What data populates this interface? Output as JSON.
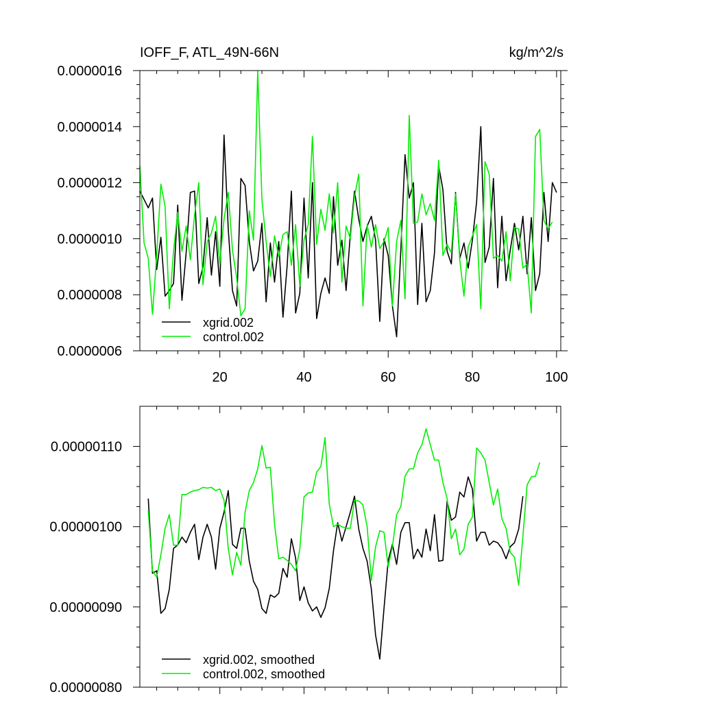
{
  "chart_data": [
    {
      "type": "line",
      "title": "IOFF_F, ATL_49N-66N",
      "units": "kg/m^2/s",
      "xlabel": "",
      "ylabel": "",
      "xlim": [
        1,
        101
      ],
      "ylim": [
        6e-07,
        1.6e-06
      ],
      "x_ticks": [
        20,
        40,
        60,
        80,
        100
      ],
      "x_tick_labels": [
        "20",
        "40",
        "60",
        "80",
        "100"
      ],
      "y_ticks": [
        6e-07,
        8e-07,
        1e-06,
        1.2e-06,
        1.4e-06,
        1.6e-06
      ],
      "y_tick_labels": [
        "0.0000006",
        "0.0000008",
        "0.0000010",
        "0.0000012",
        "0.0000014",
        "0.0000016"
      ],
      "legend_position": "bottom-left",
      "grid": false,
      "x_start": 1,
      "x_step": 1,
      "series": [
        {
          "name": "xgrid.002",
          "color": "#000000",
          "values": [
            1.17e-06,
            1.14e-06,
            1.11e-06,
            1.145e-06,
            8.9e-07,
            1.005e-06,
            7.95e-07,
            8.15e-07,
            8.4e-07,
            1.12e-06,
            7.8e-07,
            9.5e-07,
            1.165e-06,
            1.17e-06,
            8.4e-07,
            9e-07,
            1.075e-06,
            8.7e-07,
            1.025e-06,
            8.3e-07,
            1.37e-06,
            1.035e-06,
            8.15e-07,
            7.6e-07,
            1.215e-06,
            1.19e-06,
            9.9e-07,
            8.85e-07,
            9.2e-07,
            1.055e-06,
            7.75e-07,
            9.85e-07,
            8.45e-07,
            9.9e-07,
            7.2e-07,
            9.05e-07,
            1.17e-06,
            7.35e-07,
            8.05e-07,
            1.145e-06,
            8.6e-07,
            1.2e-06,
            7.15e-07,
            8.05e-07,
            8.6e-07,
            8.05e-07,
            1.15e-06,
            9.05e-07,
            9.95e-07,
            8.15e-07,
            1.015e-06,
            1.17e-06,
            1.07e-06,
            9.9e-07,
            1.045e-06,
            1.08e-06,
            9.95e-07,
            7.05e-07,
            1e-06,
            9.4e-07,
            7.6e-07,
            6.5e-07,
            9.6e-07,
            1.3e-06,
            1.145e-06,
            1.2e-06,
            7.65e-07,
            1.055e-06,
            7.75e-07,
            8.15e-07,
            9.5e-07,
            1.26e-06,
            1.175e-06,
            9.55e-07,
            9.1e-07,
            1.165e-06,
            9.3e-07,
            9.85e-07,
            8.95e-07,
            9.95e-07,
            1.13e-06,
            1.4e-06,
            9.15e-07,
            9.7e-07,
            1.215e-06,
            8.25e-07,
            1.08e-06,
            8.5e-07,
            9.6e-07,
            1.055e-06,
            9.6e-07,
            1.08e-06,
            8.75e-07,
            1.075e-06,
            8.15e-07,
            8.75e-07,
            1.165e-06,
            9.9e-07,
            1.2e-06,
            1.165e-06
          ]
        },
        {
          "name": "control.002",
          "color": "#00ee00",
          "values": [
            1.26e-06,
            9.85e-07,
            9.3e-07,
            7.3e-07,
            9.4e-07,
            1.195e-06,
            1.115e-06,
            7.5e-07,
            9.55e-07,
            1.095e-06,
            9.55e-07,
            1.045e-06,
            9.25e-07,
            1.085e-06,
            1.2e-06,
            8.35e-07,
            9.9e-07,
            1.02e-06,
            1.08e-06,
            9.1e-07,
            1.07e-06,
            1.165e-06,
            9.6e-07,
            8.6e-07,
            7.25e-07,
            7.5e-07,
            1.1e-06,
            9.95e-07,
            1.6e-06,
            1.14e-06,
            9.9e-07,
            8.65e-07,
            1.01e-06,
            9.35e-07,
            1.015e-06,
            1.025e-06,
            9.05e-07,
            1.05e-06,
            8.3e-07,
            9.95e-07,
            1.05e-06,
            1.365e-06,
            9.8e-07,
            1.105e-06,
            1.03e-06,
            1.16e-06,
            1.02e-06,
            1.2e-06,
            8.45e-07,
            1.045e-06,
            1e-06,
            1.15e-06,
            1.23e-06,
            7.6e-07,
            1.05e-06,
            9.7e-07,
            1.05e-06,
            9.65e-07,
            9.9e-07,
            1.04e-06,
            7.6e-07,
            9.9e-07,
            1.065e-06,
            7.85e-07,
            1.44e-06,
            1.055e-06,
            1.06e-06,
            1.16e-06,
            1.085e-06,
            1.125e-06,
            1.065e-06,
            1.28e-06,
            9.4e-07,
            9.8e-07,
            9.5e-07,
            1.16e-06,
            9.25e-07,
            7.95e-07,
            9.7e-07,
            1.01e-06,
            1.05e-06,
            7.5e-07,
            1.275e-06,
            1.23e-06,
            9.3e-07,
            9.4e-07,
            9.2e-07,
            1.025e-06,
            8.5e-07,
            1.04e-06,
            1.035e-06,
            8.95e-07,
            9.1e-07,
            7.35e-07,
            1.365e-06,
            1.39e-06,
            1.065e-06,
            1.035e-06,
            1.06e-06
          ]
        }
      ]
    },
    {
      "type": "line",
      "title": "",
      "xlabel": "",
      "ylabel": "",
      "xlim": [
        1,
        101
      ],
      "ylim": [
        8e-07,
        1.15e-06
      ],
      "x_ticks": [
        20,
        40,
        60,
        80,
        100
      ],
      "y_ticks": [
        8e-07,
        9e-07,
        1e-06,
        1.1e-06
      ],
      "y_tick_labels": [
        "0.00000080",
        "0.00000090",
        "0.00000100",
        "0.00000110"
      ],
      "legend_position": "bottom-left",
      "grid": false,
      "x_start": 3,
      "x_step": 1,
      "series": [
        {
          "name": "xgrid.002, smoothed",
          "color": "#000000",
          "values": [
            1.035e-06,
            9.42e-07,
            9.45e-07,
            8.92e-07,
            8.98e-07,
            9.22e-07,
            9.73e-07,
            9.77e-07,
            9.87e-07,
            9.8e-07,
            9.93e-07,
            1.003e-06,
            9.59e-07,
            9.87e-07,
            1.003e-06,
            9.87e-07,
            9.47e-07,
            9.98e-07,
            1.018e-06,
            1.045e-06,
            9.78e-07,
            9.73e-07,
            9.98e-07,
            9.98e-07,
            9.57e-07,
            9.32e-07,
            9.22e-07,
            8.98e-07,
            8.92e-07,
            9.15e-07,
            9.12e-07,
            9.17e-07,
            9.48e-07,
            9.37e-07,
            9.85e-07,
            9.61e-07,
            9.08e-07,
            9.25e-07,
            9.05e-07,
            8.95e-07,
            9e-07,
            8.87e-07,
            8.99e-07,
            9.23e-07,
            9.7e-07,
            1.005e-06,
            9.82e-07,
            1e-06,
            1.018e-06,
            1.038e-06,
            9.97e-07,
            9.73e-07,
            9.57e-07,
            9.22e-07,
            8.65e-07,
            8.35e-07,
            8.98e-07,
            9.58e-07,
            9.78e-07,
            9.53e-07,
            9.93e-07,
            1.005e-06,
            1.005e-06,
            9.6e-07,
            9.72e-07,
            9.62e-07,
            9.97e-07,
            9.7e-07,
            1.015e-06,
            9.57e-07,
            9.58e-07,
            1.032e-06,
            1.008e-06,
            1.012e-06,
            1.043e-06,
            1.037e-06,
            1.062e-06,
            1.047e-06,
            9.82e-07,
            9.93e-07,
            9.93e-07,
            9.77e-07,
            9.82e-07,
            9.8e-07,
            9.73e-07,
            9.6e-07,
            9.75e-07,
            9.8e-07,
            9.97e-07,
            1.038e-06
          ]
        },
        {
          "name": "control.002, smoothed",
          "color": "#00ee00",
          "values": [
            1.02e-06,
            9.45e-07,
            9.37e-07,
            9.65e-07,
            9.98e-07,
            1.015e-06,
            9.77e-07,
            9.77e-07,
            1.04e-06,
            1.04e-06,
            1.043e-06,
            1.045e-06,
            1.046e-06,
            1.049e-06,
            1.048e-06,
            1.049e-06,
            1.045e-06,
            1.047e-06,
            1.033e-06,
            9.73e-07,
            9.4e-07,
            9.68e-07,
            9.52e-07,
            1.018e-06,
            1.045e-06,
            1.055e-06,
            1.072e-06,
            1.101e-06,
            1.073e-06,
            1.074e-06,
            1.003e-06,
            9.6e-07,
            9.62e-07,
            9.58e-07,
            9.53e-07,
            9.45e-07,
            9.72e-07,
            1.037e-06,
            1.042e-06,
            1.043e-06,
            1.068e-06,
            1.075e-06,
            1.111e-06,
            1.028e-06,
            1e-06,
            1.003e-06,
            1e-06,
            9.98e-07,
            9.98e-07,
            1.033e-06,
            1.032e-06,
            1.027e-06,
            1e-06,
            9.33e-07,
            9.75e-07,
            9.95e-07,
            9.93e-07,
            9.5e-07,
            9.75e-07,
            1.015e-06,
            1.025e-06,
            1.063e-06,
            1.072e-06,
            1.072e-06,
            1.092e-06,
            1.102e-06,
            1.122e-06,
            1.102e-06,
            1.083e-06,
            1.083e-06,
            1.055e-06,
            1.035e-06,
            9.85e-07,
            9.97e-07,
            9.65e-07,
            9.72e-07,
            1.003e-06,
            1.012e-06,
            1.098e-06,
            1.092e-06,
            1.083e-06,
            1.055e-06,
            1.027e-06,
            1.047e-06,
            1.01e-06,
            9.98e-07,
            9.68e-07,
            9.62e-07,
            9.27e-07,
            9.88e-07,
            1.052e-06,
            1.062e-06,
            1.063e-06,
            1.08e-06
          ]
        }
      ]
    }
  ]
}
